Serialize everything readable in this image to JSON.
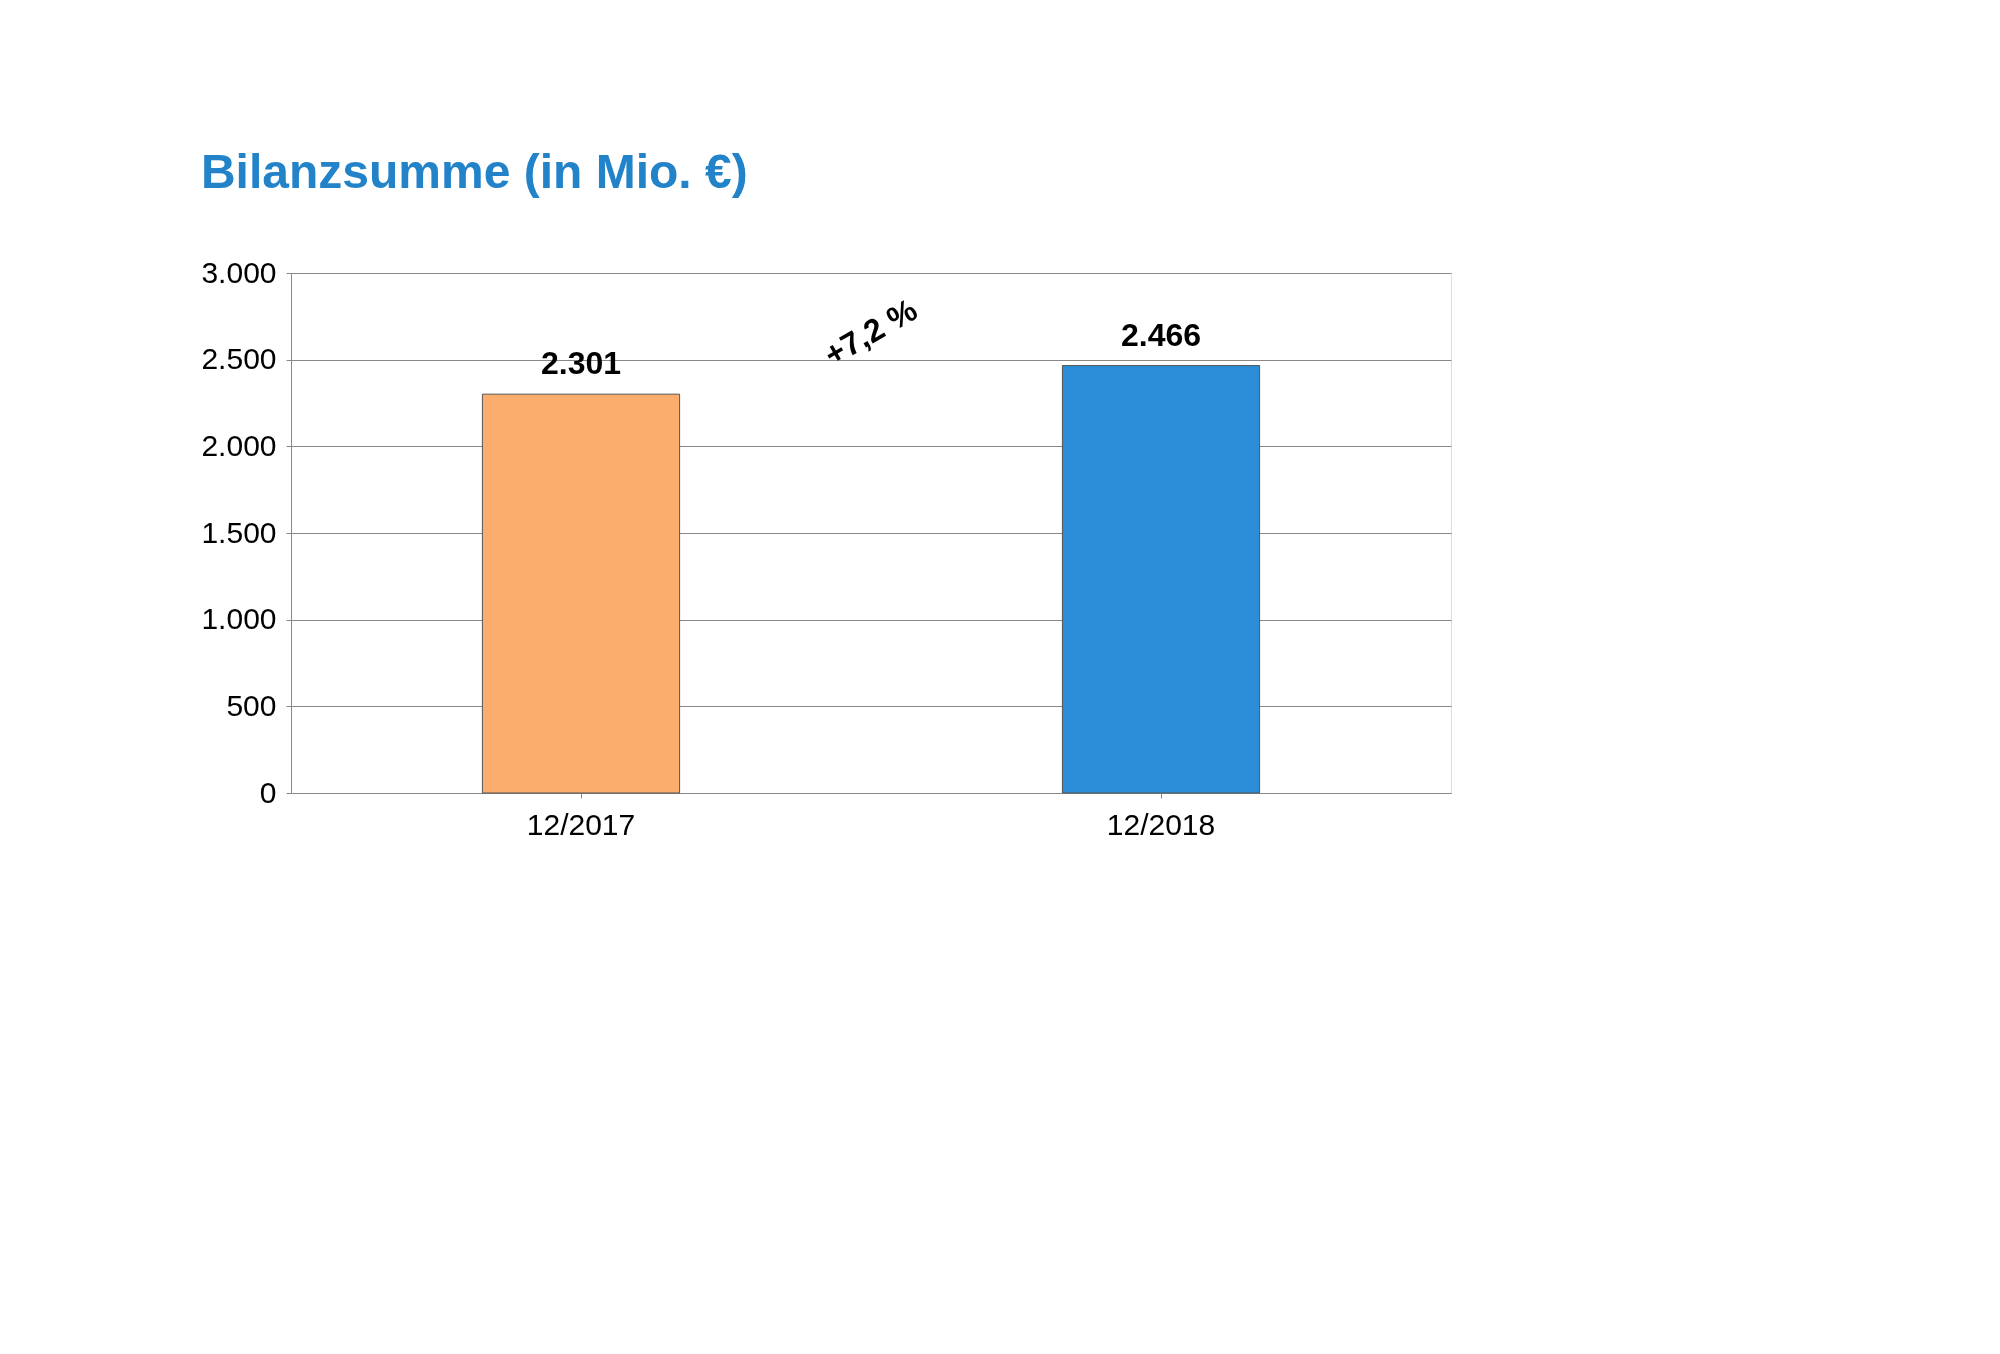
{
  "chart_data": {
    "type": "bar",
    "title": "Bilanzsumme (in Mio. €)",
    "categories": [
      "12/2017",
      "12/2018"
    ],
    "values": [
      2301,
      2466
    ],
    "colors": [
      "#fbad6e",
      "#2b8dd8"
    ],
    "ylim": [
      0,
      3000
    ],
    "yticks": [
      {
        "value": 0,
        "label": "0"
      },
      {
        "value": 500,
        "label": "500"
      },
      {
        "value": 1000,
        "label": "1.000"
      },
      {
        "value": 1500,
        "label": "1.500"
      },
      {
        "value": 2000,
        "label": "2.000"
      },
      {
        "value": 2500,
        "label": "2.500"
      },
      {
        "value": 3000,
        "label": "3.000"
      }
    ],
    "value_labels": [
      "2.301",
      "2.466"
    ],
    "annotations": [
      "+7,2 %"
    ],
    "grid": "y"
  }
}
